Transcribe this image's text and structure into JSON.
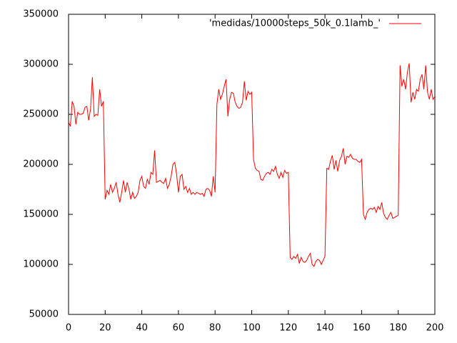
{
  "chart_data": {
    "type": "line",
    "x": [
      0,
      1,
      2,
      3,
      4,
      5,
      6,
      7,
      8,
      9,
      10,
      11,
      12,
      13,
      14,
      15,
      16,
      17,
      18,
      19,
      20,
      21,
      22,
      23,
      24,
      25,
      26,
      27,
      28,
      29,
      30,
      31,
      32,
      33,
      34,
      35,
      36,
      37,
      38,
      39,
      40,
      41,
      42,
      43,
      44,
      45,
      46,
      47,
      48,
      49,
      50,
      51,
      52,
      53,
      54,
      55,
      56,
      57,
      58,
      59,
      60,
      61,
      62,
      63,
      64,
      65,
      66,
      67,
      68,
      69,
      70,
      71,
      72,
      73,
      74,
      75,
      76,
      77,
      78,
      79,
      80,
      81,
      82,
      83,
      84,
      85,
      86,
      87,
      88,
      89,
      90,
      91,
      92,
      93,
      94,
      95,
      96,
      97,
      98,
      99,
      100,
      101,
      102,
      103,
      104,
      105,
      106,
      107,
      108,
      109,
      110,
      111,
      112,
      113,
      114,
      115,
      116,
      117,
      118,
      119,
      120,
      121,
      122,
      123,
      124,
      125,
      126,
      127,
      128,
      129,
      130,
      131,
      132,
      133,
      134,
      135,
      136,
      137,
      138,
      139,
      140,
      141,
      142,
      143,
      144,
      145,
      146,
      147,
      148,
      149,
      150,
      151,
      152,
      153,
      154,
      155,
      156,
      157,
      158,
      159,
      160,
      161,
      162,
      163,
      164,
      165,
      166,
      167,
      168,
      169,
      170,
      171,
      172,
      173,
      174,
      175,
      176,
      177,
      178,
      179,
      180,
      181,
      182,
      183,
      184,
      185,
      186,
      187,
      188,
      189,
      190,
      191,
      192,
      193,
      194,
      195,
      196,
      197,
      198,
      199,
      200
    ],
    "series": [
      {
        "name": "'medidas/10000steps_50k_0.1lamb_'",
        "color": "#ff0000",
        "values": [
          242000,
          238000,
          263000,
          258000,
          240000,
          252000,
          250000,
          250000,
          251000,
          257000,
          258000,
          244000,
          255000,
          287000,
          248000,
          250000,
          249000,
          275000,
          258000,
          263000,
          165000,
          174000,
          170000,
          180000,
          172000,
          176000,
          182000,
          170000,
          162000,
          172000,
          184000,
          172000,
          182000,
          175000,
          165000,
          172000,
          166000,
          168000,
          172000,
          184000,
          188000,
          178000,
          176000,
          185000,
          180000,
          192000,
          190000,
          214000,
          182000,
          183000,
          184000,
          182000,
          181000,
          186000,
          176000,
          180000,
          188000,
          200000,
          202000,
          190000,
          172000,
          188000,
          190000,
          175000,
          178000,
          172000,
          176000,
          170000,
          172000,
          170000,
          172000,
          171000,
          170000,
          171000,
          168000,
          175000,
          176000,
          174000,
          168000,
          188000,
          172000,
          260000,
          275000,
          265000,
          270000,
          278000,
          285000,
          248000,
          265000,
          272000,
          271000,
          262000,
          258000,
          256000,
          257000,
          262000,
          283000,
          264000,
          273000,
          270000,
          272000,
          205000,
          196000,
          194000,
          193000,
          185000,
          184000,
          188000,
          191000,
          192000,
          190000,
          195000,
          193000,
          198000,
          190000,
          186000,
          192000,
          187000,
          194000,
          191000,
          192000,
          107000,
          105000,
          108000,
          106000,
          110000,
          101000,
          107000,
          103000,
          102000,
          104000,
          108000,
          111000,
          100000,
          98000,
          103000,
          105000,
          104000,
          100000,
          104000,
          108000,
          196000,
          195000,
          203000,
          209000,
          195000,
          204000,
          193000,
          204000,
          208000,
          216000,
          200000,
          208000,
          207000,
          210000,
          206000,
          205000,
          205000,
          203000,
          202000,
          205000,
          150000,
          145000,
          152000,
          155000,
          156000,
          155000,
          157000,
          152000,
          158000,
          155000,
          162000,
          151000,
          147000,
          145000,
          149000,
          152000,
          146000,
          147000,
          148000,
          149000,
          299000,
          278000,
          285000,
          275000,
          292000,
          301000,
          262000,
          272000,
          265000,
          275000,
          273000,
          285000,
          290000,
          275000,
          299000,
          272000,
          265000,
          275000,
          265000,
          268000
        ]
      }
    ],
    "xlim": [
      0,
      200
    ],
    "ylim": [
      50000,
      350000
    ],
    "xticks": [
      0,
      20,
      40,
      60,
      80,
      100,
      120,
      140,
      160,
      180,
      200
    ],
    "yticks": [
      50000,
      100000,
      150000,
      200000,
      250000,
      300000,
      350000
    ],
    "grid": false,
    "legend": "top-right"
  }
}
